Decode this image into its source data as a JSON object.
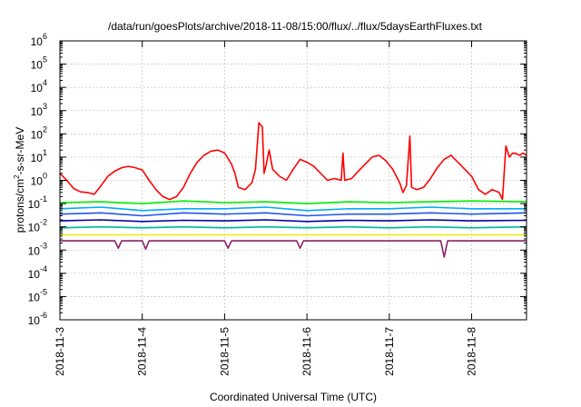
{
  "chart_data": {
    "type": "line",
    "title": "/data/run/goesPlots/archive/2018-11-08/15:00/flux/../flux/5daysEarthFluxes.txt",
    "xlabel": "Coordinated Universal Time (UTC)",
    "ylabel_parts": [
      "protons/cm",
      "2",
      "-s-sr-MeV"
    ],
    "y_scale": "log",
    "ylim_exp": [
      -6,
      6
    ],
    "y_tick_exponents": [
      -6,
      -5,
      -4,
      -3,
      -2,
      -1,
      0,
      1,
      2,
      3,
      4,
      5,
      6
    ],
    "xlim": [
      "2018-11-03T00:00",
      "2018-11-08T16:00"
    ],
    "x_ticks": [
      "2018-11-3",
      "2018-11-4",
      "2018-11-5",
      "2018-11-6",
      "2018-11-7",
      "2018-11-8"
    ],
    "grid": true,
    "legend": "none",
    "series": [
      {
        "color": "#ff0000",
        "points": [
          [
            "2018-11-03T00:00",
            2.0
          ],
          [
            "2018-11-03T02:00",
            1.0
          ],
          [
            "2018-11-03T04:00",
            0.45
          ],
          [
            "2018-11-03T06:00",
            0.32
          ],
          [
            "2018-11-03T08:00",
            0.3
          ],
          [
            "2018-11-03T10:00",
            0.25
          ],
          [
            "2018-11-03T12:00",
            0.6
          ],
          [
            "2018-11-03T14:00",
            1.5
          ],
          [
            "2018-11-03T16:00",
            2.5
          ],
          [
            "2018-11-03T18:00",
            3.5
          ],
          [
            "2018-11-03T20:00",
            4.0
          ],
          [
            "2018-11-03T22:00",
            3.5
          ],
          [
            "2018-11-04T00:00",
            2.8
          ],
          [
            "2018-11-04T02:00",
            1.0
          ],
          [
            "2018-11-04T04:00",
            0.4
          ],
          [
            "2018-11-04T06:00",
            0.2
          ],
          [
            "2018-11-04T08:00",
            0.15
          ],
          [
            "2018-11-04T10:00",
            0.2
          ],
          [
            "2018-11-04T12:00",
            0.5
          ],
          [
            "2018-11-04T14:00",
            2.0
          ],
          [
            "2018-11-04T16:00",
            6.0
          ],
          [
            "2018-11-04T18:00",
            12.0
          ],
          [
            "2018-11-04T20:00",
            18.0
          ],
          [
            "2018-11-04T22:00",
            20.0
          ],
          [
            "2018-11-05T00:00",
            15.0
          ],
          [
            "2018-11-05T02:00",
            5.0
          ],
          [
            "2018-11-05T03:00",
            2.0
          ],
          [
            "2018-11-05T04:00",
            0.5
          ],
          [
            "2018-11-05T06:00",
            0.4
          ],
          [
            "2018-11-05T08:00",
            0.8
          ],
          [
            "2018-11-05T09:00",
            3.0
          ],
          [
            "2018-11-05T10:00",
            300.0
          ],
          [
            "2018-11-05T11:00",
            200.0
          ],
          [
            "2018-11-05T11:30",
            2.0
          ],
          [
            "2018-11-05T12:00",
            4.0
          ],
          [
            "2018-11-05T13:00",
            20.0
          ],
          [
            "2018-11-05T14:00",
            3.0
          ],
          [
            "2018-11-05T16:00",
            1.5
          ],
          [
            "2018-11-05T18:00",
            1.0
          ],
          [
            "2018-11-05T20:00",
            3.0
          ],
          [
            "2018-11-05T22:00",
            8.0
          ],
          [
            "2018-11-06T00:00",
            6.0
          ],
          [
            "2018-11-06T02:00",
            4.0
          ],
          [
            "2018-11-06T04:00",
            2.0
          ],
          [
            "2018-11-06T06:00",
            1.0
          ],
          [
            "2018-11-06T08:00",
            1.2
          ],
          [
            "2018-11-06T10:00",
            1.0
          ],
          [
            "2018-11-06T10:30",
            15.0
          ],
          [
            "2018-11-06T11:00",
            1.0
          ],
          [
            "2018-11-06T13:00",
            1.2
          ],
          [
            "2018-11-06T15:00",
            2.5
          ],
          [
            "2018-11-06T17:00",
            5.0
          ],
          [
            "2018-11-06T19:00",
            10.0
          ],
          [
            "2018-11-06T21:00",
            12.0
          ],
          [
            "2018-11-06T23:00",
            7.0
          ],
          [
            "2018-11-07T01:00",
            3.0
          ],
          [
            "2018-11-07T03:00",
            0.8
          ],
          [
            "2018-11-07T04:00",
            0.3
          ],
          [
            "2018-11-07T05:00",
            0.6
          ],
          [
            "2018-11-07T06:00",
            80.0
          ],
          [
            "2018-11-07T06:30",
            0.5
          ],
          [
            "2018-11-07T08:00",
            0.4
          ],
          [
            "2018-11-07T10:00",
            0.5
          ],
          [
            "2018-11-07T12:00",
            1.2
          ],
          [
            "2018-11-07T14:00",
            3.5
          ],
          [
            "2018-11-07T16:00",
            8.0
          ],
          [
            "2018-11-07T18:00",
            12.0
          ],
          [
            "2018-11-07T20:00",
            6.0
          ],
          [
            "2018-11-07T22:00",
            3.0
          ],
          [
            "2018-11-08T00:00",
            1.5
          ],
          [
            "2018-11-08T02:00",
            0.4
          ],
          [
            "2018-11-08T04:00",
            0.25
          ],
          [
            "2018-11-08T06:00",
            0.4
          ],
          [
            "2018-11-08T08:00",
            0.3
          ],
          [
            "2018-11-08T09:00",
            0.15
          ],
          [
            "2018-11-08T10:00",
            30.0
          ],
          [
            "2018-11-08T11:00",
            10.0
          ],
          [
            "2018-11-08T12:00",
            15.0
          ],
          [
            "2018-11-08T13:00",
            14.0
          ],
          [
            "2018-11-08T14:00",
            12.0
          ],
          [
            "2018-11-08T15:00",
            15.0
          ],
          [
            "2018-11-08T16:00",
            12.0
          ]
        ]
      },
      {
        "color": "#00ee00",
        "points": [
          [
            "2018-11-03T00:00",
            0.11
          ],
          [
            "2018-11-03T12:00",
            0.12
          ],
          [
            "2018-11-04T00:00",
            0.1
          ],
          [
            "2018-11-04T12:00",
            0.13
          ],
          [
            "2018-11-05T00:00",
            0.11
          ],
          [
            "2018-11-05T12:00",
            0.12
          ],
          [
            "2018-11-06T00:00",
            0.1
          ],
          [
            "2018-11-06T12:00",
            0.12
          ],
          [
            "2018-11-07T00:00",
            0.11
          ],
          [
            "2018-11-07T12:00",
            0.12
          ],
          [
            "2018-11-08T00:00",
            0.13
          ],
          [
            "2018-11-08T16:00",
            0.12
          ]
        ]
      },
      {
        "color": "#00aaff",
        "points": [
          [
            "2018-11-03T00:00",
            0.06
          ],
          [
            "2018-11-03T12:00",
            0.07
          ],
          [
            "2018-11-04T00:00",
            0.05
          ],
          [
            "2018-11-04T12:00",
            0.06
          ],
          [
            "2018-11-05T00:00",
            0.06
          ],
          [
            "2018-11-05T12:00",
            0.07
          ],
          [
            "2018-11-06T00:00",
            0.05
          ],
          [
            "2018-11-06T12:00",
            0.06
          ],
          [
            "2018-11-07T00:00",
            0.06
          ],
          [
            "2018-11-07T12:00",
            0.07
          ],
          [
            "2018-11-08T00:00",
            0.06
          ],
          [
            "2018-11-08T16:00",
            0.06
          ]
        ]
      },
      {
        "color": "#2255ee",
        "points": [
          [
            "2018-11-03T00:00",
            0.035
          ],
          [
            "2018-11-03T12:00",
            0.04
          ],
          [
            "2018-11-04T00:00",
            0.03
          ],
          [
            "2018-11-04T12:00",
            0.04
          ],
          [
            "2018-11-05T00:00",
            0.035
          ],
          [
            "2018-11-05T12:00",
            0.04
          ],
          [
            "2018-11-06T00:00",
            0.03
          ],
          [
            "2018-11-06T12:00",
            0.035
          ],
          [
            "2018-11-07T00:00",
            0.035
          ],
          [
            "2018-11-07T12:00",
            0.04
          ],
          [
            "2018-11-08T00:00",
            0.035
          ],
          [
            "2018-11-08T16:00",
            0.04
          ]
        ]
      },
      {
        "color": "#0000aa",
        "points": [
          [
            "2018-11-03T00:00",
            0.018
          ],
          [
            "2018-11-03T12:00",
            0.02
          ],
          [
            "2018-11-04T00:00",
            0.017
          ],
          [
            "2018-11-04T12:00",
            0.019
          ],
          [
            "2018-11-05T00:00",
            0.018
          ],
          [
            "2018-11-05T12:00",
            0.02
          ],
          [
            "2018-11-06T00:00",
            0.017
          ],
          [
            "2018-11-06T12:00",
            0.019
          ],
          [
            "2018-11-07T00:00",
            0.018
          ],
          [
            "2018-11-07T12:00",
            0.02
          ],
          [
            "2018-11-08T00:00",
            0.018
          ],
          [
            "2018-11-08T16:00",
            0.019
          ]
        ]
      },
      {
        "color": "#00bb99",
        "points": [
          [
            "2018-11-03T00:00",
            0.009
          ],
          [
            "2018-11-03T12:00",
            0.01
          ],
          [
            "2018-11-04T00:00",
            0.009
          ],
          [
            "2018-11-04T12:00",
            0.01
          ],
          [
            "2018-11-05T00:00",
            0.009
          ],
          [
            "2018-11-05T12:00",
            0.01
          ],
          [
            "2018-11-06T00:00",
            0.009
          ],
          [
            "2018-11-06T12:00",
            0.01
          ],
          [
            "2018-11-07T00:00",
            0.009
          ],
          [
            "2018-11-07T12:00",
            0.01
          ],
          [
            "2018-11-08T00:00",
            0.009
          ],
          [
            "2018-11-08T16:00",
            0.01
          ]
        ]
      },
      {
        "color": "#eeee00",
        "points": [
          [
            "2018-11-03T00:00",
            0.0045
          ],
          [
            "2018-11-04T00:00",
            0.0045
          ],
          [
            "2018-11-05T00:00",
            0.0045
          ],
          [
            "2018-11-06T00:00",
            0.0045
          ],
          [
            "2018-11-07T00:00",
            0.0045
          ],
          [
            "2018-11-08T00:00",
            0.0045
          ],
          [
            "2018-11-08T16:00",
            0.0045
          ]
        ]
      },
      {
        "color": "#882266",
        "points": [
          [
            "2018-11-03T00:00",
            0.0025
          ],
          [
            "2018-11-03T16:00",
            0.0025
          ],
          [
            "2018-11-03T17:00",
            0.0012
          ],
          [
            "2018-11-03T18:00",
            0.0025
          ],
          [
            "2018-11-04T00:00",
            0.0025
          ],
          [
            "2018-11-04T01:00",
            0.0011
          ],
          [
            "2018-11-04T02:00",
            0.0025
          ],
          [
            "2018-11-05T00:00",
            0.0025
          ],
          [
            "2018-11-05T01:00",
            0.0012
          ],
          [
            "2018-11-05T02:00",
            0.0025
          ],
          [
            "2018-11-05T21:00",
            0.0025
          ],
          [
            "2018-11-05T22:00",
            0.0012
          ],
          [
            "2018-11-05T23:00",
            0.0025
          ],
          [
            "2018-11-07T15:00",
            0.0025
          ],
          [
            "2018-11-07T16:00",
            0.0005
          ],
          [
            "2018-11-07T17:00",
            0.0025
          ],
          [
            "2018-11-08T16:00",
            0.0025
          ]
        ]
      }
    ]
  }
}
